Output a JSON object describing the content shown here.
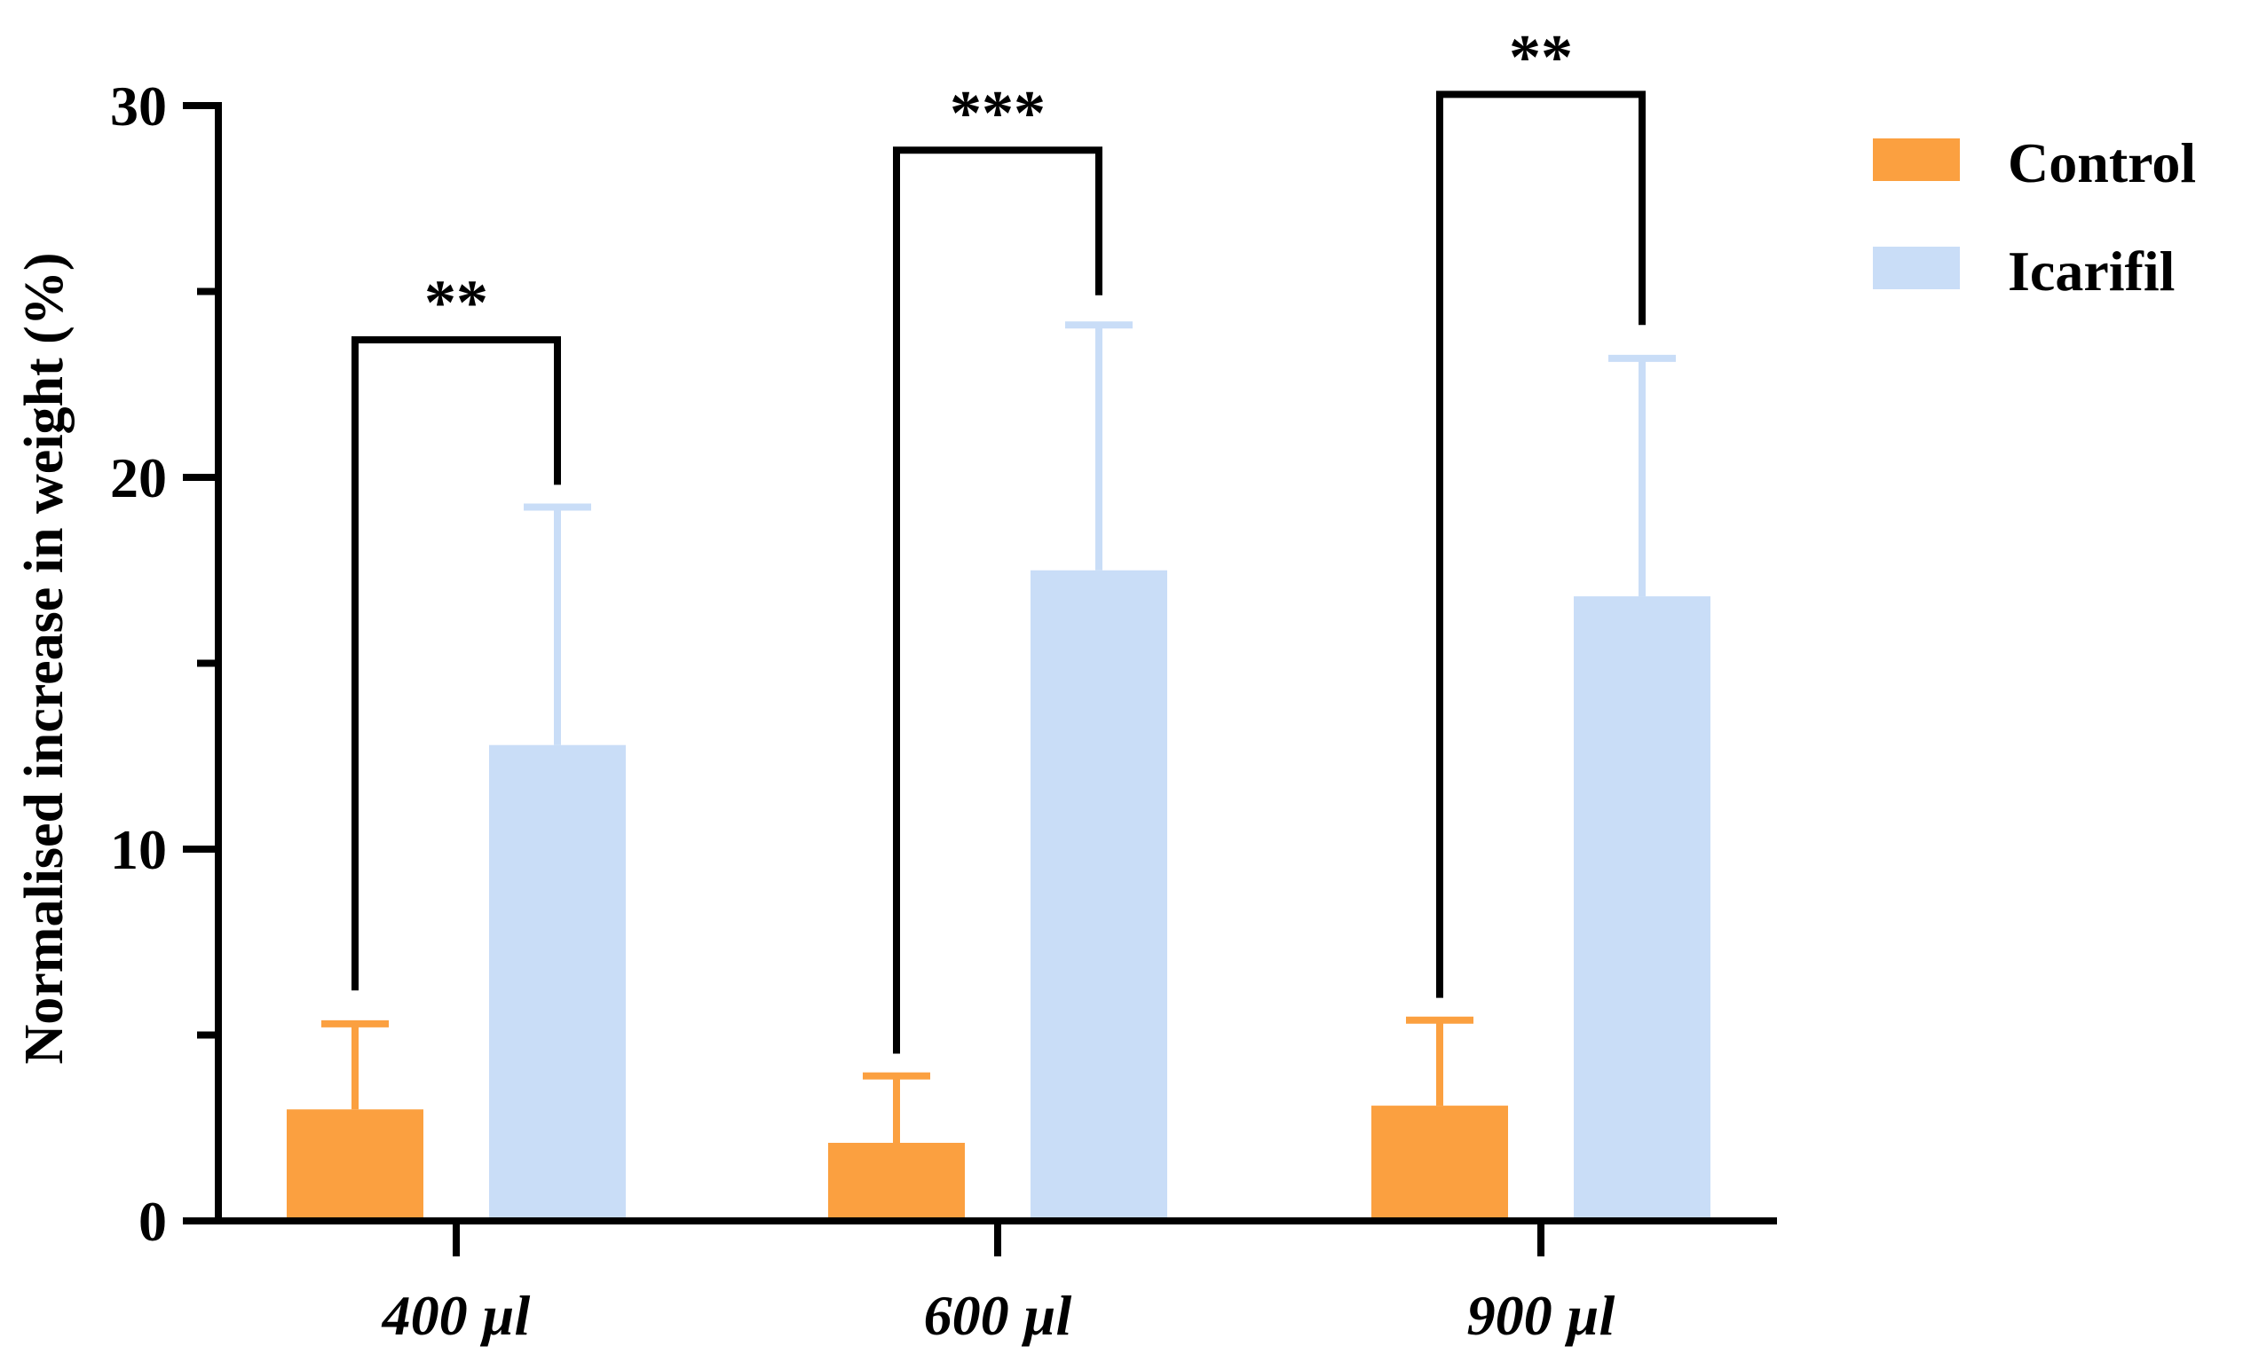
{
  "chart_data": {
    "type": "bar",
    "title": "",
    "xlabel": "",
    "ylabel": "Normalised increase in weight (%)",
    "categories": [
      "400 µl",
      "600 µl",
      "900 µl"
    ],
    "ylim": [
      0,
      30
    ],
    "yticks": [
      0,
      10,
      20,
      30
    ],
    "ytick_labels": [
      "0",
      "10",
      "20",
      "30"
    ],
    "minor_ytick_step": 5,
    "series": [
      {
        "name": "Control",
        "color": "#FBA040",
        "values": [
          3.0,
          2.1,
          3.1
        ],
        "error_upper": [
          2.3,
          1.8,
          2.3
        ]
      },
      {
        "name": "Icarifil",
        "color": "#C9DDF7",
        "values": [
          12.8,
          17.5,
          16.8
        ],
        "error_upper": [
          6.4,
          6.6,
          6.4
        ]
      }
    ],
    "significance": [
      {
        "category": "400 µl",
        "label": "**",
        "bracket_top": 23.7,
        "left_bottom": 6.2,
        "right_bottom": 19.8
      },
      {
        "category": "600 µl",
        "label": "***",
        "bracket_top": 28.8,
        "left_bottom": 4.5,
        "right_bottom": 24.9
      },
      {
        "category": "900 µl",
        "label": "**",
        "bracket_top": 30.3,
        "left_bottom": 6.0,
        "right_bottom": 24.1
      }
    ],
    "legend": {
      "position": "top-right",
      "entries": [
        "Control",
        "Icarifil"
      ]
    }
  }
}
